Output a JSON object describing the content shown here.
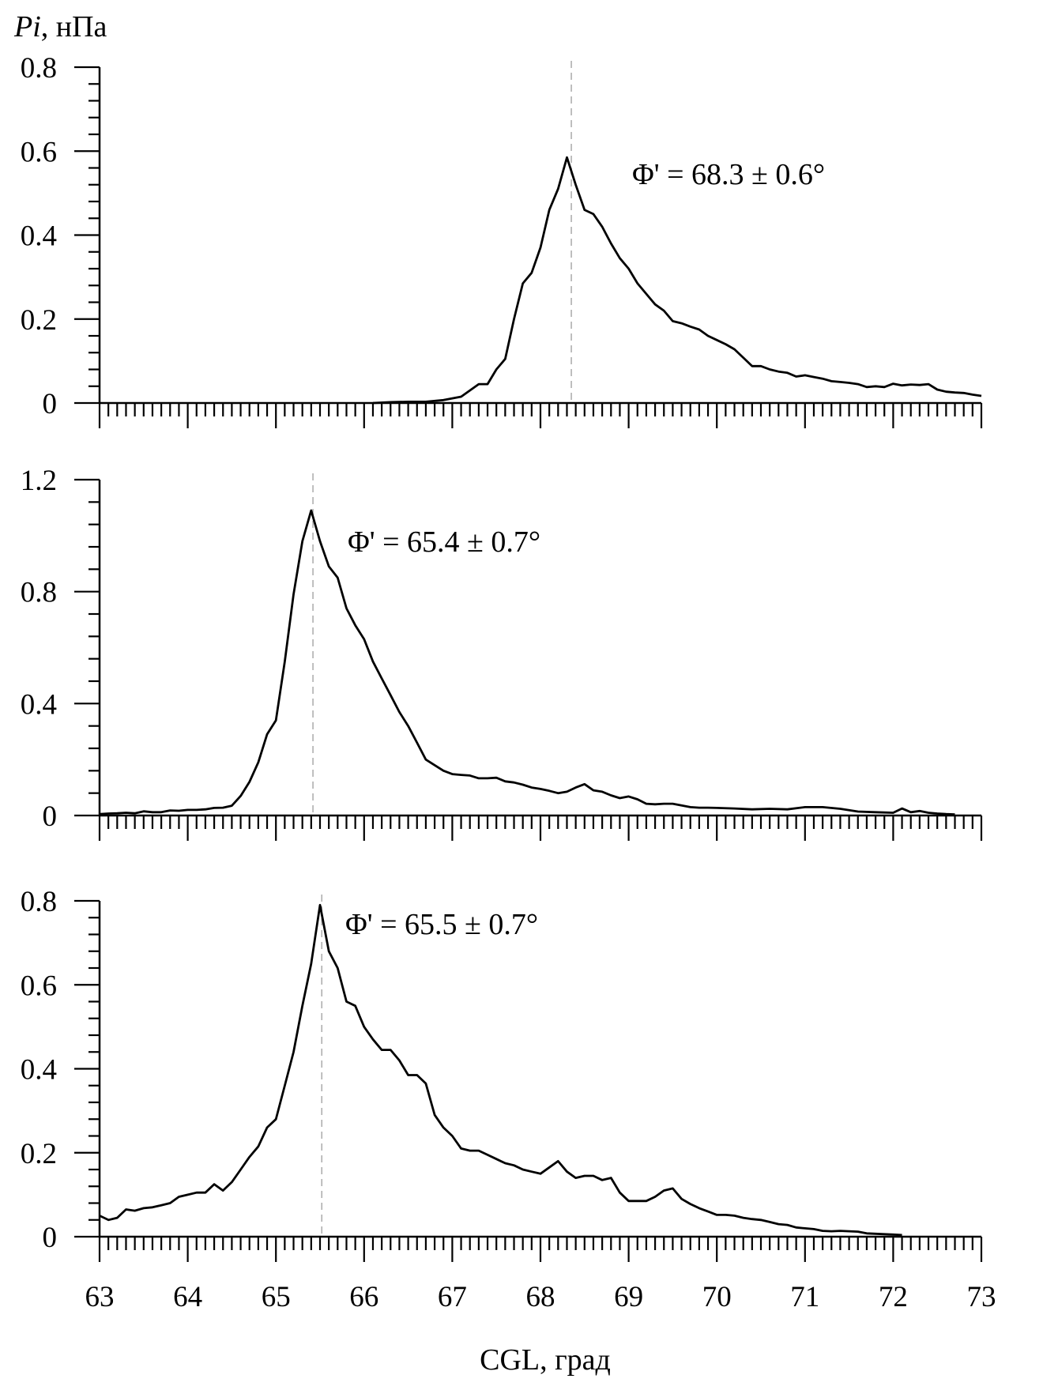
{
  "figure": {
    "ylabel_italic": "Pi",
    "ylabel_rest": ", нПа",
    "xlabel": "CGL, град"
  },
  "chart_data": [
    {
      "type": "line",
      "ylim": [
        0,
        0.8
      ],
      "yticks": [
        0,
        0.2,
        0.4,
        0.6,
        0.8
      ],
      "ytick_labels": [
        "0",
        "0.2",
        "0.4",
        "0.6",
        "0.8"
      ],
      "xlim": [
        63,
        73
      ],
      "reference_x": 68.35,
      "annotation": "Φ' = 68.3 ± 0.6°",
      "series": [
        {
          "x": [
            66.1,
            66.3,
            66.5,
            66.7,
            66.9,
            67.1,
            67.3,
            67.4,
            67.5,
            67.6,
            67.7,
            67.8,
            67.9,
            68.0,
            68.1,
            68.2,
            68.3,
            68.4,
            68.5,
            68.6,
            68.7,
            68.8,
            68.9,
            69.0,
            69.1,
            69.2,
            69.3,
            69.4,
            69.5,
            69.6,
            69.7,
            69.8,
            69.9,
            70.0,
            70.1,
            70.2,
            70.3,
            70.4,
            70.5,
            70.6,
            70.7,
            70.8,
            70.9,
            71.0,
            71.1,
            71.2,
            71.3,
            71.4,
            71.5,
            71.6,
            71.7,
            71.8,
            71.9,
            72.0,
            72.1,
            72.2,
            72.3,
            72.4,
            72.5,
            72.6,
            72.7,
            72.8,
            72.9,
            73.0
          ],
          "y": [
            0.0,
            0.002,
            0.003,
            0.003,
            0.007,
            0.015,
            0.045,
            0.045,
            0.08,
            0.105,
            0.2,
            0.285,
            0.31,
            0.37,
            0.46,
            0.51,
            0.585,
            0.52,
            0.46,
            0.45,
            0.42,
            0.38,
            0.345,
            0.32,
            0.285,
            0.26,
            0.235,
            0.22,
            0.195,
            0.19,
            0.182,
            0.175,
            0.16,
            0.15,
            0.14,
            0.128,
            0.108,
            0.088,
            0.088,
            0.08,
            0.075,
            0.072,
            0.063,
            0.066,
            0.062,
            0.058,
            0.052,
            0.05,
            0.048,
            0.045,
            0.038,
            0.04,
            0.038,
            0.046,
            0.042,
            0.044,
            0.043,
            0.045,
            0.032,
            0.027,
            0.025,
            0.024,
            0.02,
            0.017
          ]
        }
      ]
    },
    {
      "type": "line",
      "ylim": [
        0,
        1.2
      ],
      "yticks": [
        0,
        0.4,
        0.8,
        1.2
      ],
      "ytick_labels": [
        "0",
        "0.4",
        "0.8",
        "1.2"
      ],
      "xlim": [
        63,
        73
      ],
      "reference_x": 65.42,
      "annotation": "Φ' = 65.4 ± 0.7°",
      "series": [
        {
          "x": [
            63.0,
            63.1,
            63.2,
            63.3,
            63.4,
            63.5,
            63.6,
            63.7,
            63.8,
            63.9,
            64.0,
            64.1,
            64.2,
            64.3,
            64.4,
            64.5,
            64.6,
            64.7,
            64.8,
            64.9,
            65.0,
            65.1,
            65.2,
            65.3,
            65.4,
            65.5,
            65.6,
            65.7,
            65.8,
            65.9,
            66.0,
            66.1,
            66.2,
            66.3,
            66.4,
            66.5,
            66.6,
            66.7,
            66.8,
            66.9,
            67.0,
            67.1,
            67.2,
            67.3,
            67.4,
            67.5,
            67.6,
            67.7,
            67.8,
            67.9,
            68.0,
            68.1,
            68.2,
            68.3,
            68.4,
            68.5,
            68.6,
            68.7,
            68.8,
            68.9,
            69.0,
            69.1,
            69.2,
            69.3,
            69.4,
            69.5,
            69.6,
            69.7,
            69.8,
            69.9,
            70.0,
            70.2,
            70.4,
            70.6,
            70.8,
            71.0,
            71.2,
            71.4,
            71.6,
            71.8,
            72.0,
            72.1,
            72.2,
            72.3,
            72.4,
            72.5,
            72.6,
            72.7
          ],
          "y": [
            0.005,
            0.007,
            0.008,
            0.01,
            0.008,
            0.015,
            0.012,
            0.012,
            0.018,
            0.017,
            0.02,
            0.02,
            0.022,
            0.027,
            0.028,
            0.035,
            0.07,
            0.12,
            0.19,
            0.29,
            0.34,
            0.55,
            0.79,
            0.98,
            1.09,
            0.98,
            0.89,
            0.85,
            0.74,
            0.68,
            0.63,
            0.55,
            0.49,
            0.43,
            0.37,
            0.32,
            0.26,
            0.2,
            0.18,
            0.16,
            0.148,
            0.145,
            0.143,
            0.133,
            0.133,
            0.135,
            0.122,
            0.118,
            0.11,
            0.1,
            0.095,
            0.088,
            0.08,
            0.085,
            0.1,
            0.112,
            0.09,
            0.085,
            0.072,
            0.062,
            0.068,
            0.058,
            0.042,
            0.04,
            0.042,
            0.042,
            0.036,
            0.03,
            0.028,
            0.028,
            0.027,
            0.025,
            0.022,
            0.024,
            0.022,
            0.03,
            0.03,
            0.024,
            0.014,
            0.012,
            0.01,
            0.025,
            0.012,
            0.016,
            0.01,
            0.007,
            0.005,
            0.004
          ]
        }
      ]
    },
    {
      "type": "line",
      "ylim": [
        0,
        0.8
      ],
      "yticks": [
        0,
        0.2,
        0.4,
        0.6,
        0.8
      ],
      "ytick_labels": [
        "0",
        "0.2",
        "0.4",
        "0.6",
        "0.8"
      ],
      "xlim": [
        63,
        73
      ],
      "xticks": [
        63,
        64,
        65,
        66,
        67,
        68,
        69,
        70,
        71,
        72,
        73
      ],
      "xtick_labels": [
        "63",
        "64",
        "65",
        "66",
        "67",
        "68",
        "69",
        "70",
        "71",
        "72",
        "73"
      ],
      "reference_x": 65.52,
      "annotation": "Φ' = 65.5 ± 0.7°",
      "series": [
        {
          "x": [
            63.0,
            63.1,
            63.2,
            63.3,
            63.4,
            63.5,
            63.6,
            63.7,
            63.8,
            63.9,
            64.0,
            64.1,
            64.2,
            64.3,
            64.4,
            64.5,
            64.6,
            64.7,
            64.8,
            64.9,
            65.0,
            65.1,
            65.2,
            65.3,
            65.4,
            65.5,
            65.6,
            65.7,
            65.8,
            65.9,
            66.0,
            66.1,
            66.2,
            66.3,
            66.4,
            66.5,
            66.6,
            66.7,
            66.8,
            66.9,
            67.0,
            67.1,
            67.2,
            67.3,
            67.4,
            67.5,
            67.6,
            67.7,
            67.8,
            67.9,
            68.0,
            68.1,
            68.2,
            68.3,
            68.4,
            68.5,
            68.6,
            68.7,
            68.8,
            68.9,
            69.0,
            69.1,
            69.2,
            69.3,
            69.4,
            69.5,
            69.6,
            69.7,
            69.8,
            69.9,
            70.0,
            70.1,
            70.2,
            70.3,
            70.4,
            70.5,
            70.6,
            70.7,
            70.8,
            70.9,
            71.0,
            71.1,
            71.2,
            71.3,
            71.4,
            71.5,
            71.6,
            71.7,
            71.8,
            71.9,
            72.0,
            72.1
          ],
          "y": [
            0.05,
            0.04,
            0.045,
            0.065,
            0.062,
            0.068,
            0.07,
            0.075,
            0.08,
            0.095,
            0.1,
            0.105,
            0.105,
            0.125,
            0.11,
            0.13,
            0.16,
            0.19,
            0.215,
            0.26,
            0.28,
            0.36,
            0.44,
            0.55,
            0.65,
            0.79,
            0.68,
            0.64,
            0.56,
            0.55,
            0.5,
            0.47,
            0.445,
            0.445,
            0.42,
            0.385,
            0.385,
            0.365,
            0.29,
            0.26,
            0.24,
            0.21,
            0.205,
            0.205,
            0.195,
            0.185,
            0.175,
            0.17,
            0.16,
            0.155,
            0.15,
            0.165,
            0.18,
            0.155,
            0.14,
            0.145,
            0.145,
            0.135,
            0.14,
            0.105,
            0.085,
            0.085,
            0.085,
            0.095,
            0.11,
            0.115,
            0.09,
            0.078,
            0.068,
            0.06,
            0.052,
            0.052,
            0.05,
            0.045,
            0.042,
            0.04,
            0.035,
            0.03,
            0.028,
            0.022,
            0.02,
            0.018,
            0.014,
            0.013,
            0.014,
            0.013,
            0.012,
            0.008,
            0.007,
            0.006,
            0.005,
            0.004
          ]
        }
      ]
    }
  ]
}
